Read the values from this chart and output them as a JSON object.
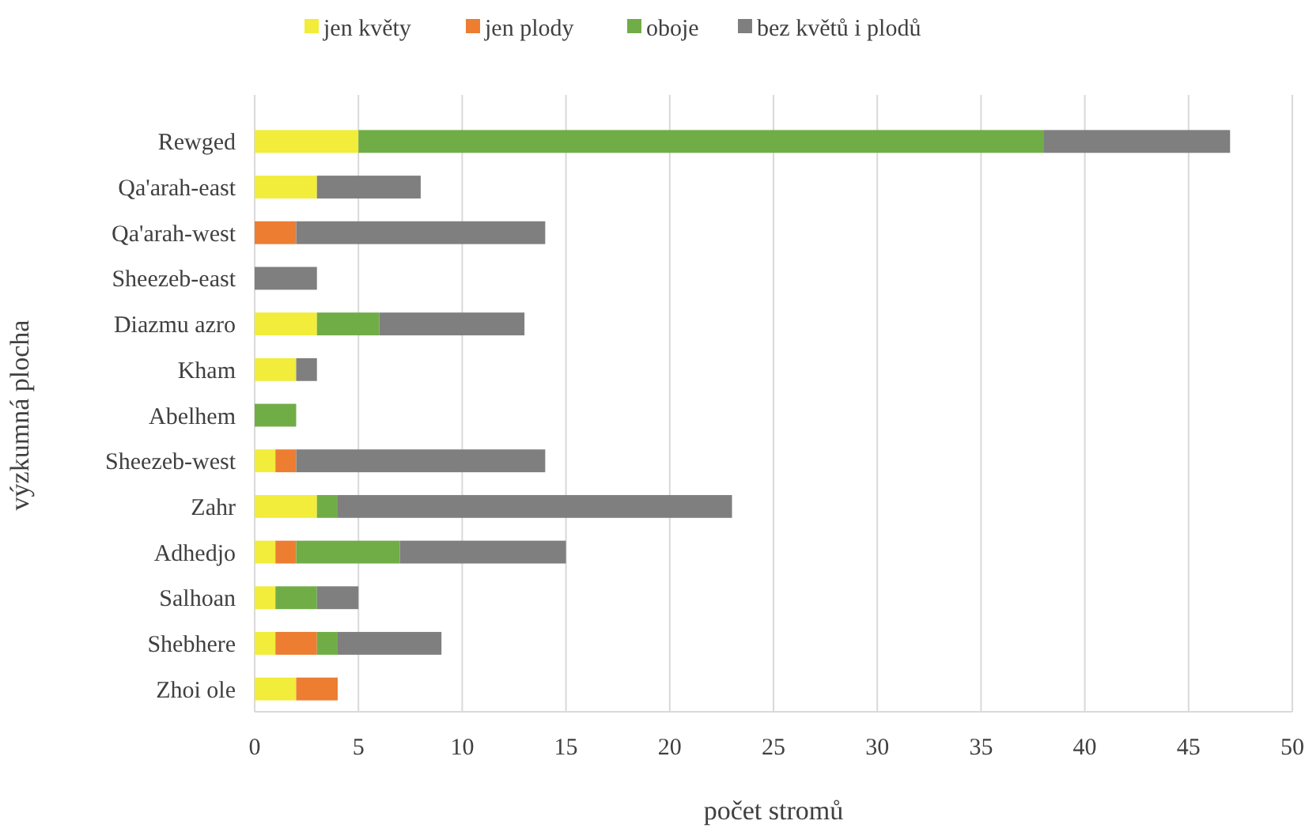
{
  "chart_data": {
    "type": "bar",
    "orientation": "horizontal",
    "stacked": true,
    "xlabel": "počet stromů",
    "ylabel": "výzkumná plocha",
    "categories": [
      "Rewged",
      "Qa'arah-east",
      "Qa'arah-west",
      "Sheezeb-east",
      "Diazmu azro",
      "Kham",
      "Abelhem",
      "Sheezeb-west",
      "Zahr",
      "Adhedjo",
      "Salhoan",
      "Shebhere",
      "Zhoi ole"
    ],
    "series": [
      {
        "name": "jen květy",
        "color": "#f2ec3a",
        "values": [
          5,
          3,
          0,
          0,
          3,
          2,
          0,
          1,
          3,
          1,
          1,
          1,
          2
        ]
      },
      {
        "name": "jen plody",
        "color": "#ed7d31",
        "values": [
          0,
          0,
          2,
          0,
          0,
          0,
          0,
          1,
          0,
          1,
          0,
          2,
          2
        ]
      },
      {
        "name": "oboje",
        "color": "#70ad47",
        "values": [
          33,
          0,
          0,
          0,
          3,
          0,
          2,
          0,
          1,
          5,
          2,
          1,
          0
        ]
      },
      {
        "name": "bez květů i plodů",
        "color": "#7f7f7f",
        "values": [
          9,
          5,
          12,
          3,
          7,
          1,
          0,
          12,
          19,
          8,
          2,
          5,
          0
        ]
      }
    ],
    "xlim": [
      0,
      50
    ],
    "xticks": [
      0,
      5,
      10,
      15,
      20,
      25,
      30,
      35,
      40,
      45,
      50
    ],
    "grid": "x",
    "legend": "top"
  }
}
